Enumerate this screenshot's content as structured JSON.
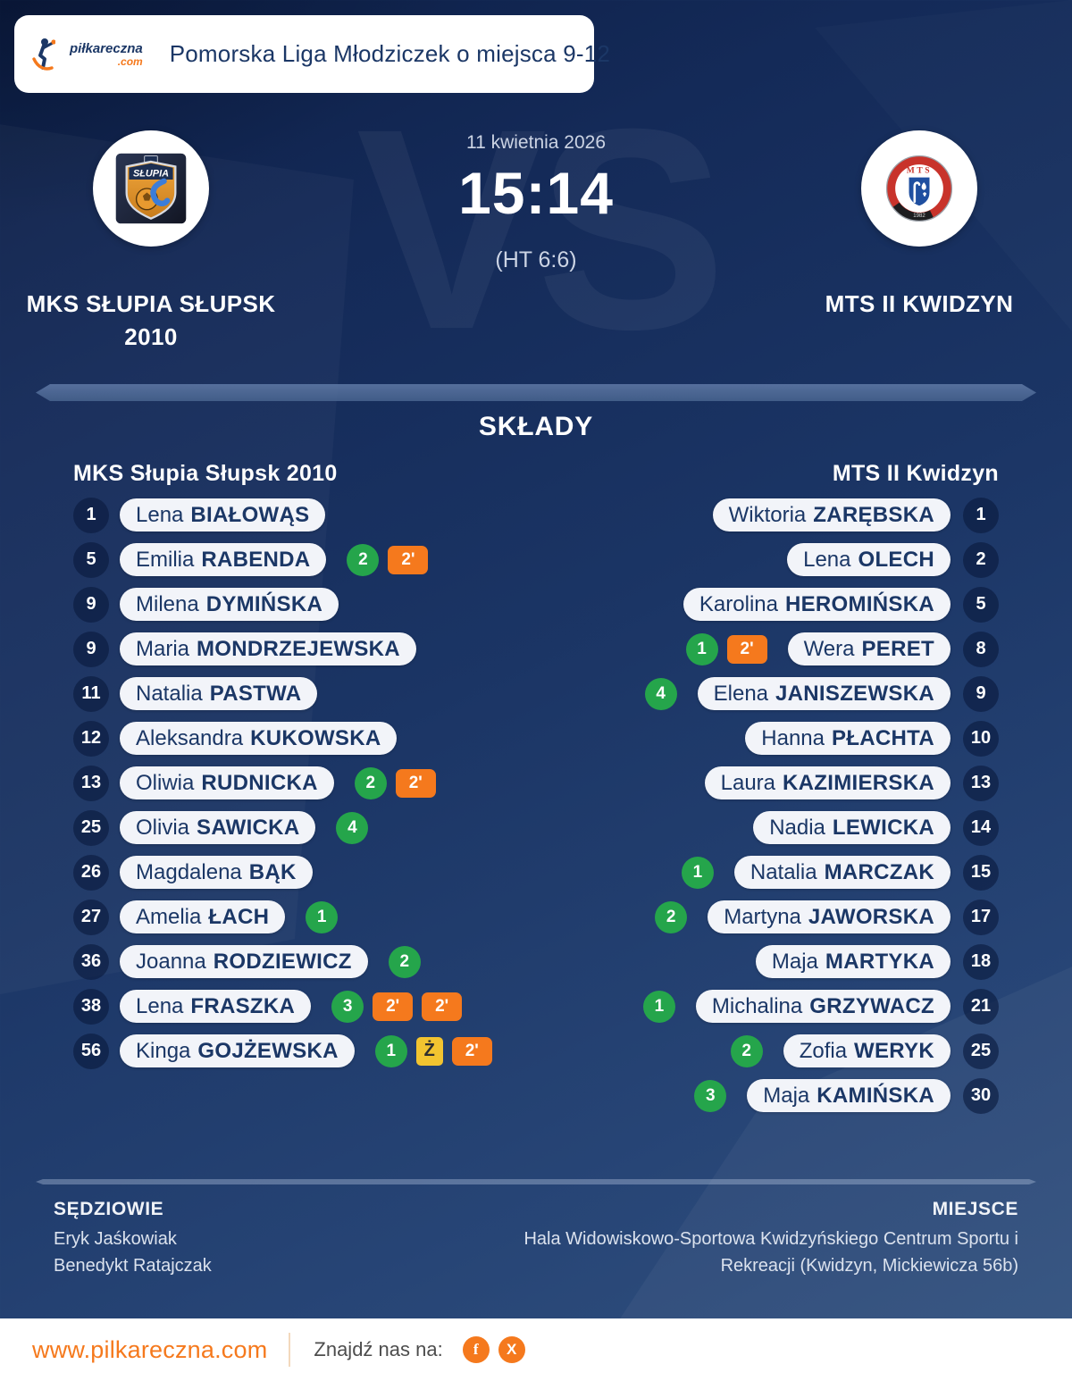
{
  "header": {
    "brand": {
      "name": "piłkareczna",
      "tld": ".com"
    },
    "title": "Pomorska Liga Młodziczek o miejsca 9-12"
  },
  "match": {
    "date": "11 kwietnia 2026",
    "score": "15:14",
    "halftime": "(HT 6:6)",
    "vs_watermark": "VS",
    "home": {
      "name_lines": [
        "MKS SŁUPIA SŁUPSK",
        "2010"
      ]
    },
    "away": {
      "name_lines": [
        "MTS II KWIDZYN"
      ]
    }
  },
  "lineups": {
    "heading": "SKŁADY",
    "home": {
      "title": "MKS Słupia Słupsk 2010",
      "players": [
        {
          "number": "1",
          "first": "Lena",
          "last": "BIAŁOWĄS",
          "badges": []
        },
        {
          "number": "5",
          "first": "Emilia",
          "last": "RABENDA",
          "badges": [
            {
              "type": "goals",
              "value": "2"
            },
            {
              "type": "suspension",
              "value": "2'"
            }
          ]
        },
        {
          "number": "9",
          "first": "Milena",
          "last": "DYMIŃSKA",
          "badges": []
        },
        {
          "number": "9",
          "first": "Maria",
          "last": "MONDRZEJEWSKA",
          "badges": []
        },
        {
          "number": "11",
          "first": "Natalia",
          "last": "PASTWA",
          "badges": []
        },
        {
          "number": "12",
          "first": "Aleksandra",
          "last": "KUKOWSKA",
          "badges": []
        },
        {
          "number": "13",
          "first": "Oliwia",
          "last": "RUDNICKA",
          "badges": [
            {
              "type": "goals",
              "value": "2"
            },
            {
              "type": "suspension",
              "value": "2'"
            }
          ]
        },
        {
          "number": "25",
          "first": "Olivia",
          "last": "SAWICKA",
          "badges": [
            {
              "type": "goals",
              "value": "4"
            }
          ]
        },
        {
          "number": "26",
          "first": "Magdalena",
          "last": "BĄK",
          "badges": []
        },
        {
          "number": "27",
          "first": "Amelia",
          "last": "ŁACH",
          "badges": [
            {
              "type": "goals",
              "value": "1"
            }
          ]
        },
        {
          "number": "36",
          "first": "Joanna",
          "last": "RODZIEWICZ",
          "badges": [
            {
              "type": "goals",
              "value": "2"
            }
          ]
        },
        {
          "number": "38",
          "first": "Lena",
          "last": "FRASZKA",
          "badges": [
            {
              "type": "goals",
              "value": "3"
            },
            {
              "type": "suspension",
              "value": "2'"
            },
            {
              "type": "suspension",
              "value": "2'"
            }
          ]
        },
        {
          "number": "56",
          "first": "Kinga",
          "last": "GOJŻEWSKA",
          "badges": [
            {
              "type": "goals",
              "value": "1"
            },
            {
              "type": "yellow-card",
              "value": "Ż"
            },
            {
              "type": "suspension",
              "value": "2'"
            }
          ]
        }
      ]
    },
    "away": {
      "title": "MTS II Kwidzyn",
      "players": [
        {
          "number": "1",
          "first": "Wiktoria",
          "last": "ZARĘBSKA",
          "badges": []
        },
        {
          "number": "2",
          "first": "Lena",
          "last": "OLECH",
          "badges": []
        },
        {
          "number": "5",
          "first": "Karolina",
          "last": "HEROMIŃSKA",
          "badges": []
        },
        {
          "number": "8",
          "first": "Wera",
          "last": "PERET",
          "badges": [
            {
              "type": "goals",
              "value": "1"
            },
            {
              "type": "suspension",
              "value": "2'"
            }
          ]
        },
        {
          "number": "9",
          "first": "Elena",
          "last": "JANISZEWSKA",
          "badges": [
            {
              "type": "goals",
              "value": "4"
            }
          ]
        },
        {
          "number": "10",
          "first": "Hanna",
          "last": "PŁACHTA",
          "badges": []
        },
        {
          "number": "13",
          "first": "Laura",
          "last": "KAZIMIERSKA",
          "badges": []
        },
        {
          "number": "14",
          "first": "Nadia",
          "last": "LEWICKA",
          "badges": []
        },
        {
          "number": "15",
          "first": "Natalia",
          "last": "MARCZAK",
          "badges": [
            {
              "type": "goals",
              "value": "1"
            }
          ]
        },
        {
          "number": "17",
          "first": "Martyna",
          "last": "JAWORSKA",
          "badges": [
            {
              "type": "goals",
              "value": "2"
            }
          ]
        },
        {
          "number": "18",
          "first": "Maja",
          "last": "MARTYKA",
          "badges": []
        },
        {
          "number": "21",
          "first": "Michalina",
          "last": "GRZYWACZ",
          "badges": [
            {
              "type": "goals",
              "value": "1"
            }
          ]
        },
        {
          "number": "25",
          "first": "Zofia",
          "last": "WERYK",
          "badges": [
            {
              "type": "goals",
              "value": "2"
            }
          ]
        },
        {
          "number": "30",
          "first": "Maja",
          "last": "KAMIŃSKA",
          "badges": [
            {
              "type": "goals",
              "value": "3"
            }
          ]
        }
      ]
    }
  },
  "officials": {
    "referees_label": "SĘDZIOWIE",
    "referees": [
      "Eryk Jaśkowiak",
      "Benedykt Ratajczak"
    ],
    "venue_label": "MIEJSCE",
    "venue_lines": [
      "Hala Widowiskowo-Sportowa Kwidzyńskiego Centrum Sportu i",
      "Rekreacji (Kwidzyn, Mickiewicza 56b)"
    ]
  },
  "footer": {
    "website": "www.pilkareczna.com",
    "find_us_label": "Znajdź nas na:",
    "social": [
      {
        "name": "facebook",
        "glyph": "f"
      },
      {
        "name": "x-twitter",
        "glyph": "X"
      }
    ]
  },
  "colors": {
    "navy_text": "#1b3766",
    "green": "#25a54b",
    "orange": "#f5791d",
    "yellow": "#f2c430",
    "pill_bg": "#f2f4f9"
  }
}
